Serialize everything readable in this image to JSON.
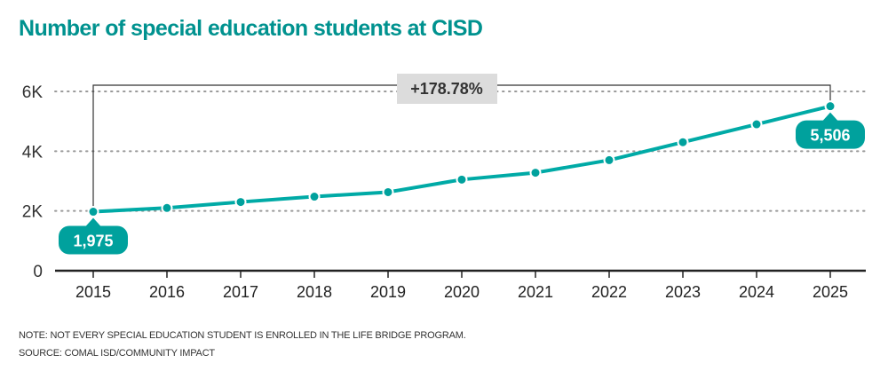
{
  "title": "Number of special education students at CISD",
  "note": "NOTE: NOT EVERY SPECIAL EDUCATION STUDENT IS ENROLLED IN THE LIFE BRIDGE PROGRAM.",
  "source": "SOURCE: COMAL ISD/COMMUNITY IMPACT",
  "colors": {
    "accent": "#00aaa6",
    "title": "#00928f",
    "callout": "#00a19d",
    "change_box": "#dcdcdc"
  },
  "chart_data": {
    "type": "line",
    "title": "Number of special education students at CISD",
    "xlabel": "",
    "ylabel": "",
    "categories": [
      "2015",
      "2016",
      "2017",
      "2018",
      "2019",
      "2020",
      "2021",
      "2022",
      "2023",
      "2024",
      "2025"
    ],
    "series": [
      {
        "name": "Special education students",
        "values": [
          1975,
          2100,
          2300,
          2480,
          2630,
          3050,
          3280,
          3700,
          4300,
          4900,
          5506
        ]
      }
    ],
    "ylim": [
      0,
      6000
    ],
    "yticks": [
      0,
      2000,
      4000,
      6000
    ],
    "ytick_labels": [
      "0",
      "2K",
      "4K",
      "6K"
    ],
    "grid": true,
    "annotations": {
      "start_label": "1,975",
      "end_label": "5,506",
      "change_label": "+178.78%"
    }
  }
}
